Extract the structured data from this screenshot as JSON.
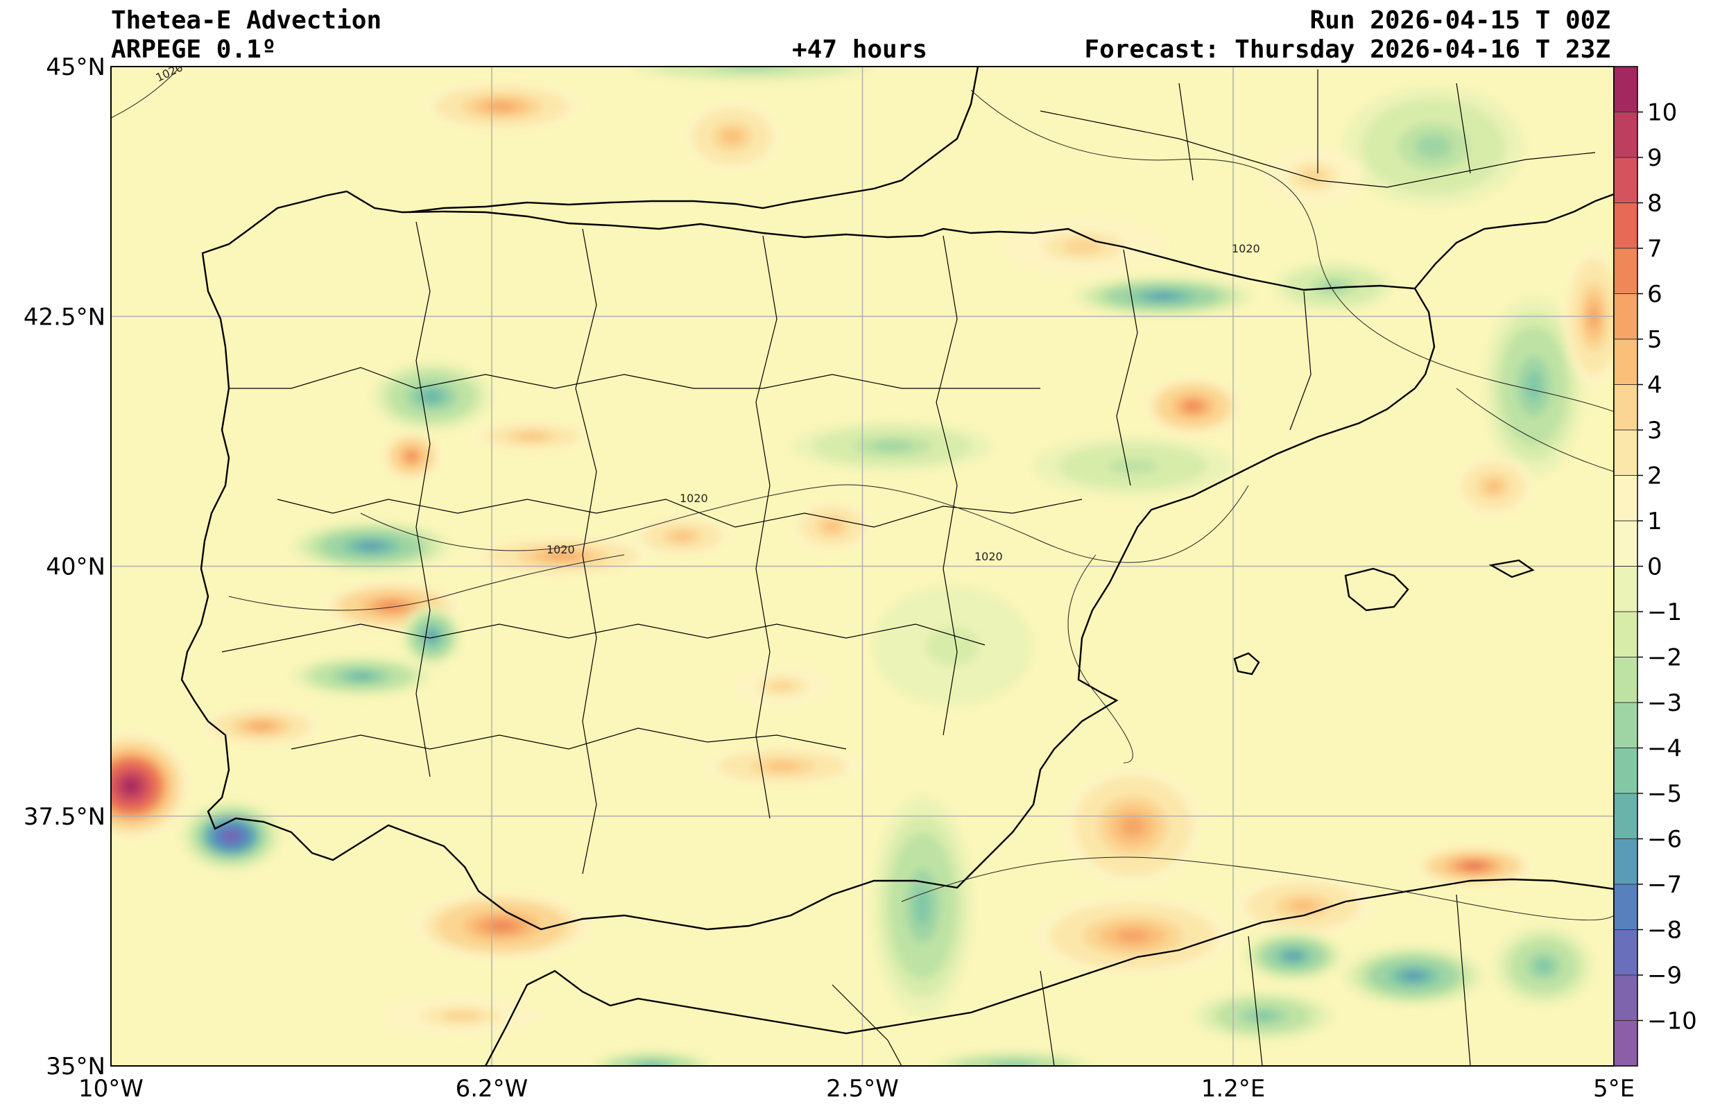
{
  "header": {
    "title": "Thetea-E Advection",
    "model": "ARPEGE 0.1º",
    "lead_time": "+47 hours",
    "run": "Run 2026-04-15 T 00Z",
    "forecast": "Forecast: Thursday 2026-04-16 T 23Z"
  },
  "map": {
    "extent": {
      "lon_min": -10,
      "lon_max": 5,
      "lat_min": 35,
      "lat_max": 45
    },
    "lat_ticks": [
      {
        "value": 45,
        "label": "45°N"
      },
      {
        "value": 42.5,
        "label": "42.5°N"
      },
      {
        "value": 40,
        "label": "40°N"
      },
      {
        "value": 37.5,
        "label": "37.5°N"
      },
      {
        "value": 35,
        "label": "35°N"
      }
    ],
    "lon_ticks": [
      {
        "value": -10,
        "label": "10°W"
      },
      {
        "value": -6.2,
        "label": "6.2°W"
      },
      {
        "value": -2.5,
        "label": "2.5°W"
      },
      {
        "value": 1.2,
        "label": "1.2°E"
      },
      {
        "value": 5,
        "label": "5°E"
      }
    ],
    "isobar_label": "1020",
    "colors": {
      "background": "#fbf6b9",
      "grid": "#b0b0b0",
      "coast": "#000000"
    }
  },
  "colorbar": {
    "ticks": [
      10,
      9,
      8,
      7,
      6,
      5,
      4,
      3,
      2,
      1,
      0,
      -1,
      -2,
      -3,
      -4,
      -5,
      -6,
      -7,
      -8,
      -9,
      -10
    ],
    "tick_labels": [
      "10",
      "9",
      "8",
      "7",
      "6",
      "5",
      "4",
      "3",
      "2",
      "1",
      "0",
      "−1",
      "−2",
      "−3",
      "−4",
      "−5",
      "−6",
      "−7",
      "−8",
      "−9",
      "−10"
    ],
    "colors_top_to_bottom": [
      "#a3285f",
      "#be3e5f",
      "#d5535d",
      "#e66a56",
      "#f08759",
      "#f6a566",
      "#fac07a",
      "#fbd592",
      "#fce7ab",
      "#fdf4c2",
      "#faf7c4",
      "#ecf3b6",
      "#d8ecaa",
      "#bde2a4",
      "#9fd5a4",
      "#82c8a5",
      "#69b3aa",
      "#5a9cb7",
      "#5681bd",
      "#6a6fbb",
      "#7d64ad",
      "#8c5ea8"
    ]
  },
  "anomalies": [
    {
      "lon": -9.8,
      "lat": 37.8,
      "value": 10,
      "sx": 0.6,
      "sy": 0.55
    },
    {
      "lon": -8.8,
      "lat": 37.3,
      "value": -10,
      "sx": 0.5,
      "sy": 0.35
    },
    {
      "lon": -6.1,
      "lat": 36.4,
      "value": 6,
      "sx": 0.9,
      "sy": 0.35
    },
    {
      "lon": -7.2,
      "lat": 39.6,
      "value": 6,
      "sx": 0.7,
      "sy": 0.25
    },
    {
      "lon": -7.5,
      "lat": 38.9,
      "value": -6,
      "sx": 0.7,
      "sy": 0.2
    },
    {
      "lon": -6.8,
      "lat": 39.3,
      "value": -7,
      "sx": 0.3,
      "sy": 0.3
    },
    {
      "lon": -7.4,
      "lat": 40.2,
      "value": -7,
      "sx": 0.8,
      "sy": 0.25
    },
    {
      "lon": -5.5,
      "lat": 40.1,
      "value": 5,
      "sx": 0.9,
      "sy": 0.2
    },
    {
      "lon": -6.8,
      "lat": 41.7,
      "value": -6,
      "sx": 0.6,
      "sy": 0.35
    },
    {
      "lon": -7.0,
      "lat": 41.1,
      "value": 6,
      "sx": 0.3,
      "sy": 0.25
    },
    {
      "lon": -6.1,
      "lat": 44.6,
      "value": 5,
      "sx": 0.8,
      "sy": 0.25
    },
    {
      "lon": -3.8,
      "lat": 44.3,
      "value": 4,
      "sx": 0.5,
      "sy": 0.35
    },
    {
      "lon": -3.6,
      "lat": 45.0,
      "value": -4,
      "sx": 1.2,
      "sy": 0.15
    },
    {
      "lon": -0.3,
      "lat": 43.2,
      "value": 3,
      "sx": 0.8,
      "sy": 0.3
    },
    {
      "lon": 0.5,
      "lat": 42.7,
      "value": -7,
      "sx": 0.9,
      "sy": 0.2
    },
    {
      "lon": 2.2,
      "lat": 42.8,
      "value": -4,
      "sx": 0.6,
      "sy": 0.25
    },
    {
      "lon": 0.8,
      "lat": 41.6,
      "value": 6,
      "sx": 0.5,
      "sy": 0.3
    },
    {
      "lon": -2.2,
      "lat": 41.2,
      "value": -4,
      "sx": 1.0,
      "sy": 0.25
    },
    {
      "lon": 0.2,
      "lat": 41.0,
      "value": -3,
      "sx": 1.0,
      "sy": 0.3
    },
    {
      "lon": 4.2,
      "lat": 41.8,
      "value": -5,
      "sx": 0.5,
      "sy": 0.9
    },
    {
      "lon": 4.8,
      "lat": 42.5,
      "value": 5,
      "sx": 0.3,
      "sy": 0.7
    },
    {
      "lon": 3.8,
      "lat": 40.8,
      "value": 4,
      "sx": 0.4,
      "sy": 0.3
    },
    {
      "lon": -2.8,
      "lat": 40.4,
      "value": 4,
      "sx": 0.4,
      "sy": 0.25
    },
    {
      "lon": -4.3,
      "lat": 40.3,
      "value": 4,
      "sx": 0.5,
      "sy": 0.2
    },
    {
      "lon": -3.3,
      "lat": 38.8,
      "value": 3,
      "sx": 0.5,
      "sy": 0.2
    },
    {
      "lon": -3.3,
      "lat": 38.0,
      "value": 4,
      "sx": 0.8,
      "sy": 0.2
    },
    {
      "lon": -1.9,
      "lat": 36.6,
      "value": -5,
      "sx": 0.5,
      "sy": 1.1
    },
    {
      "lon": 0.2,
      "lat": 37.4,
      "value": 5,
      "sx": 0.7,
      "sy": 0.6
    },
    {
      "lon": 0.2,
      "lat": 36.3,
      "value": 5,
      "sx": 1.0,
      "sy": 0.4
    },
    {
      "lon": 1.9,
      "lat": 36.6,
      "value": 4,
      "sx": 0.7,
      "sy": 0.3
    },
    {
      "lon": 3.6,
      "lat": 37.0,
      "value": 7,
      "sx": 0.6,
      "sy": 0.2
    },
    {
      "lon": 1.8,
      "lat": 36.1,
      "value": -7,
      "sx": 0.5,
      "sy": 0.25
    },
    {
      "lon": 3.0,
      "lat": 35.9,
      "value": -7,
      "sx": 0.7,
      "sy": 0.3
    },
    {
      "lon": 4.3,
      "lat": 36.0,
      "value": -5,
      "sx": 0.5,
      "sy": 0.4
    },
    {
      "lon": 1.5,
      "lat": 35.5,
      "value": -5,
      "sx": 0.7,
      "sy": 0.25
    },
    {
      "lon": -6.5,
      "lat": 35.5,
      "value": 3,
      "sx": 0.8,
      "sy": 0.2
    },
    {
      "lon": -4.6,
      "lat": 35.0,
      "value": -6,
      "sx": 0.6,
      "sy": 0.15
    },
    {
      "lon": -1.0,
      "lat": 35.0,
      "value": -5,
      "sx": 0.8,
      "sy": 0.15
    },
    {
      "lon": -8.5,
      "lat": 38.4,
      "value": 5,
      "sx": 0.6,
      "sy": 0.2
    },
    {
      "lon": -5.8,
      "lat": 41.3,
      "value": 4,
      "sx": 0.6,
      "sy": 0.15
    },
    {
      "lon": 3.2,
      "lat": 44.2,
      "value": -4,
      "sx": 0.9,
      "sy": 0.6
    },
    {
      "lon": 2.0,
      "lat": 43.9,
      "value": 3,
      "sx": 0.5,
      "sy": 0.3
    },
    {
      "lon": -1.6,
      "lat": 39.2,
      "value": -2,
      "sx": 0.8,
      "sy": 0.6
    }
  ]
}
